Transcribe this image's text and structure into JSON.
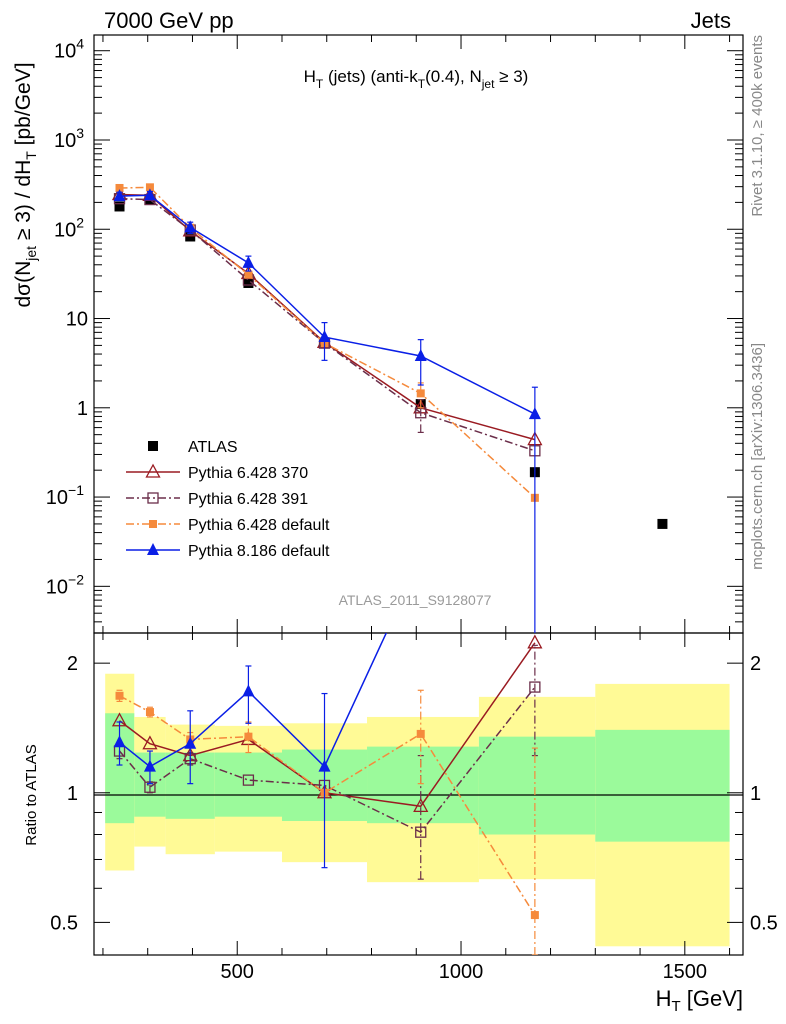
{
  "header": {
    "left": "7000 GeV pp",
    "right": "Jets"
  },
  "side_labels": {
    "rivet": "Rivet 3.1.10, ≥ 400k events",
    "mcplots": "mcplots.cern.ch [arXiv:1306.3436]"
  },
  "colors": {
    "atlas": "#000000",
    "p6_370": "#9a1b22",
    "p6_391": "#6b2e4a",
    "p6_default": "#f58a3c",
    "p8_default": "#0a1fe6",
    "band_outer": "#fffa96",
    "band_inner": "#9bfa9b"
  },
  "chart_data": [
    {
      "type": "line",
      "panel": "main",
      "title": "H_T (jets) (anti-k_T(0.4), N_jet ≥ 3)",
      "title_parts": {
        "a": "H",
        "b": "T",
        "c": " (jets) (anti-k",
        "d": "T",
        "e": "(0.4), N",
        "f": "jet",
        "g": " ≥ 3)"
      },
      "analysis_label": "ATLAS_2011_S9128077",
      "ylabel": "dσ(N_jet ≥ 3) / dH_T [pb/GeV]",
      "ylabel_parts": {
        "a": "dσ(N",
        "b": "jet",
        "c": " ≥ 3) / dH",
        "d": "T",
        "e": " [pb/GeV]"
      },
      "yscale": "log",
      "ylim": [
        0.003,
        15000
      ],
      "xlim": [
        180,
        1630
      ],
      "ytick_labels": [
        {
          "v": 0.01,
          "base": "10",
          "exp": "−2"
        },
        {
          "v": 0.1,
          "base": "10",
          "exp": "−1"
        },
        {
          "v": 1,
          "base": "1",
          "exp": ""
        },
        {
          "v": 10,
          "base": "10",
          "exp": ""
        },
        {
          "v": 100,
          "base": "10",
          "exp": "2"
        },
        {
          "v": 1000,
          "base": "10",
          "exp": "3"
        },
        {
          "v": 10000,
          "base": "10",
          "exp": "4"
        }
      ],
      "legend": [
        "ATLAS",
        "Pythia 6.428 370",
        "Pythia 6.428 391",
        "Pythia 6.428 default",
        "Pythia 8.186 default"
      ],
      "legend_position": "lower-left",
      "series": [
        {
          "name": "ATLAS",
          "key": "atlas",
          "style": "marker",
          "marker": "square",
          "points": [
            [
              237,
              180
            ],
            [
              305,
              215
            ],
            [
              395,
              83
            ],
            [
              525,
              25
            ],
            [
              695,
              5.3
            ],
            [
              910,
              1.1
            ],
            [
              1165,
              0.19
            ],
            [
              1450,
              0.05
            ]
          ]
        },
        {
          "name": "Pythia 6.428 370",
          "key": "p6_370",
          "style": "solid",
          "marker": "triangle-open",
          "points": [
            [
              237,
              245
            ],
            [
              305,
              240
            ],
            [
              395,
              96
            ],
            [
              525,
              32
            ],
            [
              695,
              5.4
            ],
            [
              910,
              1.0
            ],
            [
              1165,
              0.44
            ]
          ]
        },
        {
          "name": "Pythia 6.428 391",
          "key": "p6_391",
          "style": "dashdot",
          "marker": "square-open",
          "points": [
            [
              237,
              220
            ],
            [
              305,
              215
            ],
            [
              395,
              98
            ],
            [
              525,
              27
            ],
            [
              695,
              5.3
            ],
            [
              910,
              0.88
            ],
            [
              1165,
              0.33
            ]
          ],
          "errors": [
            [
              0,
              0
            ],
            [
              0,
              0
            ],
            [
              0,
              0
            ],
            [
              0,
              0
            ],
            [
              0,
              0
            ],
            [
              0.35,
              0.35
            ],
            [
              0,
              0
            ]
          ]
        },
        {
          "name": "Pythia 6.428 default",
          "key": "p6_default",
          "style": "dashdot",
          "marker": "square-filled-small",
          "points": [
            [
              237,
              290
            ],
            [
              305,
              295
            ],
            [
              395,
              104
            ],
            [
              525,
              31
            ],
            [
              695,
              5.3
            ],
            [
              910,
              1.45
            ],
            [
              1165,
              0.098
            ]
          ],
          "errors": [
            [
              0,
              0
            ],
            [
              0,
              0
            ],
            [
              0,
              0
            ],
            [
              0,
              0
            ],
            [
              0,
              0
            ],
            [
              0.45,
              0.45
            ],
            [
              0,
              0
            ]
          ]
        },
        {
          "name": "Pythia 8.186 default",
          "key": "p8_default",
          "style": "solid",
          "marker": "triangle-filled",
          "points": [
            [
              237,
              235
            ],
            [
              305,
              240
            ],
            [
              395,
              105
            ],
            [
              525,
              42
            ],
            [
              695,
              6.2
            ],
            [
              910,
              3.8
            ],
            [
              1165,
              0.85
            ]
          ],
          "errors": [
            [
              25,
              25
            ],
            [
              25,
              25
            ],
            [
              15,
              15
            ],
            [
              8,
              8
            ],
            [
              2.8,
              2.8
            ],
            [
              2.0,
              2.0
            ],
            [
              0.85,
              0.85
            ]
          ]
        }
      ]
    },
    {
      "type": "line",
      "panel": "ratio",
      "ylabel": "Ratio to ATLAS",
      "xlabel": "H_T [GeV]",
      "xlabel_parts": {
        "a": "H",
        "b": "T",
        "c": " [GeV]"
      },
      "yscale": "log",
      "ylim": [
        0.42,
        2.35
      ],
      "xlim": [
        180,
        1630
      ],
      "yticks": [
        0.5,
        1,
        2
      ],
      "ytick_labels": [
        "0.5",
        "1",
        "2"
      ],
      "xticks": [
        500,
        1000,
        1500
      ],
      "xtick_labels": [
        "500",
        "1000",
        "1500"
      ],
      "reference_line": 1,
      "bands": [
        {
          "x0": 205,
          "x1": 270,
          "lo_outer": 0.66,
          "hi_outer": 1.89,
          "lo_inner": 0.85,
          "hi_inner": 1.53
        },
        {
          "x0": 270,
          "x1": 340,
          "lo_outer": 0.75,
          "hi_outer": 1.5,
          "lo_inner": 0.88,
          "hi_inner": 1.24
        },
        {
          "x0": 340,
          "x1": 450,
          "lo_outer": 0.72,
          "hi_outer": 1.44,
          "lo_inner": 0.87,
          "hi_inner": 1.24
        },
        {
          "x0": 450,
          "x1": 600,
          "lo_outer": 0.73,
          "hi_outer": 1.43,
          "lo_inner": 0.88,
          "hi_inner": 1.24
        },
        {
          "x0": 600,
          "x1": 790,
          "lo_outer": 0.69,
          "hi_outer": 1.45,
          "lo_inner": 0.86,
          "hi_inner": 1.26
        },
        {
          "x0": 790,
          "x1": 1040,
          "lo_outer": 0.62,
          "hi_outer": 1.5,
          "lo_inner": 0.85,
          "hi_inner": 1.28
        },
        {
          "x0": 1040,
          "x1": 1300,
          "lo_outer": 0.63,
          "hi_outer": 1.67,
          "lo_inner": 0.8,
          "hi_inner": 1.35
        },
        {
          "x0": 1300,
          "x1": 1600,
          "lo_outer": 0.44,
          "hi_outer": 1.79,
          "lo_inner": 0.77,
          "hi_inner": 1.4
        }
      ],
      "series": [
        {
          "name": "Pythia 6.428 370",
          "key": "p6_370",
          "style": "solid",
          "marker": "triangle-open",
          "points": [
            [
              237,
              1.47
            ],
            [
              305,
              1.3
            ],
            [
              395,
              1.22
            ],
            [
              525,
              1.33
            ],
            [
              695,
              1.0
            ],
            [
              910,
              0.93
            ],
            [
              1165,
              2.23
            ]
          ]
        },
        {
          "name": "Pythia 6.428 391",
          "key": "p6_391",
          "style": "dashdot",
          "marker": "square-open",
          "points": [
            [
              237,
              1.25
            ],
            [
              305,
              1.03
            ],
            [
              395,
              1.2
            ],
            [
              525,
              1.07
            ],
            [
              695,
              1.04
            ],
            [
              910,
              0.81
            ],
            [
              1165,
              1.76
            ]
          ],
          "errors": [
            [
              0.05,
              0.05
            ],
            [
              0.03,
              0.03
            ],
            [
              0.04,
              0.04
            ],
            [
              0,
              0
            ],
            [
              0,
              0
            ],
            [
              0.18,
              0.41
            ],
            [
              0.54,
              0.44
            ]
          ]
        },
        {
          "name": "Pythia 6.428 default",
          "key": "p6_default",
          "style": "dashdot",
          "marker": "square-filled-small",
          "points": [
            [
              237,
              1.68
            ],
            [
              305,
              1.54
            ],
            [
              395,
              1.33
            ],
            [
              525,
              1.35
            ],
            [
              695,
              1.0
            ],
            [
              910,
              1.37
            ],
            [
              1165,
              0.52
            ]
          ],
          "errors": [
            [
              0.05,
              0.05
            ],
            [
              0.04,
              0.04
            ],
            [
              0.05,
              0.05
            ],
            [
              0.11,
              0.11
            ],
            [
              0,
              0
            ],
            [
              0.32,
              0.36
            ],
            [
              0.1,
              0.75
            ]
          ]
        },
        {
          "name": "Pythia 8.186 default",
          "key": "p8_default",
          "style": "solid",
          "marker": "triangle-filled",
          "points": [
            [
              237,
              1.31
            ],
            [
              305,
              1.15
            ],
            [
              395,
              1.3
            ],
            [
              525,
              1.72
            ],
            [
              695,
              1.15
            ],
            [
              910,
              3.5
            ]
          ],
          "errors": [
            [
              0.15,
              0.15
            ],
            [
              0.1,
              0.1
            ],
            [
              0.25,
              0.25
            ],
            [
              0.27,
              0.25
            ],
            [
              0.48,
              0.55
            ],
            [
              0,
              0
            ]
          ]
        }
      ]
    }
  ]
}
